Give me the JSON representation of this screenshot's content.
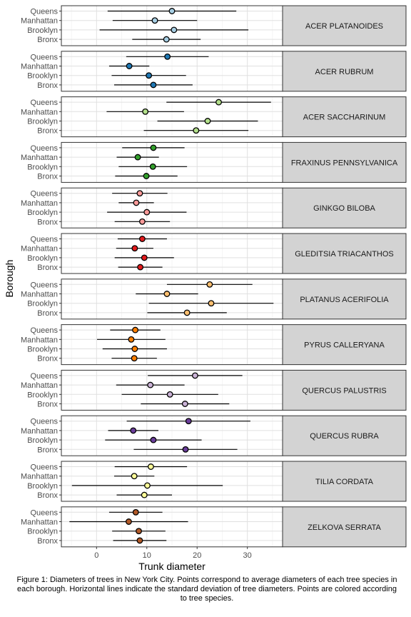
{
  "chart_data": {
    "type": "scatter",
    "subtype": "faceted dot plot with horizontal error bars",
    "title": "",
    "xlabel": "Trunk diameter",
    "ylabel": "Borough",
    "xlim": [
      -7,
      37
    ],
    "xticks": [
      0,
      10,
      20,
      30
    ],
    "grid": true,
    "legend": "none",
    "boroughs": [
      "Queens",
      "Manhattan",
      "Brooklyn",
      "Bronx"
    ],
    "facets": [
      {
        "species": "ACER PLATANOIDES",
        "color": "#a6cee3",
        "mean": [
          15.0,
          11.6,
          15.4,
          13.9
        ],
        "sd": [
          12.8,
          8.4,
          14.8,
          6.8
        ]
      },
      {
        "species": "ACER RUBRUM",
        "color": "#1f78b4",
        "mean": [
          14.1,
          6.5,
          10.4,
          11.3
        ],
        "sd": [
          8.2,
          4.0,
          7.4,
          7.8
        ]
      },
      {
        "species": "ACER SACCHARINUM",
        "color": "#b2df8a",
        "mean": [
          24.3,
          9.7,
          22.1,
          19.8
        ],
        "sd": [
          10.4,
          7.7,
          10.0,
          10.4
        ]
      },
      {
        "species": "FRAXINUS PENNSYLVANICA",
        "color": "#33a02c",
        "mean": [
          11.3,
          8.2,
          11.2,
          9.9
        ],
        "sd": [
          6.2,
          4.2,
          6.8,
          6.2
        ]
      },
      {
        "species": "GINKGO BILOBA",
        "color": "#fb9a99",
        "mean": [
          8.6,
          7.9,
          10.0,
          9.1
        ],
        "sd": [
          5.5,
          3.5,
          7.9,
          5.5
        ]
      },
      {
        "species": "GLEDITSIA TRIACANTHOS",
        "color": "#e31a1c",
        "mean": [
          9.1,
          7.6,
          9.5,
          8.7
        ],
        "sd": [
          4.9,
          3.7,
          5.9,
          4.4
        ]
      },
      {
        "species": "PLATANUS ACERIFOLIA",
        "color": "#fdbf6f",
        "mean": [
          22.5,
          14.0,
          22.8,
          18.0
        ],
        "sd": [
          8.5,
          6.2,
          12.4,
          7.9
        ]
      },
      {
        "species": "PYRUS CALLERYANA",
        "color": "#ff7f00",
        "mean": [
          7.7,
          6.9,
          7.6,
          7.5
        ],
        "sd": [
          5.0,
          6.8,
          6.4,
          4.5
        ]
      },
      {
        "species": "QUERCUS PALUSTRIS",
        "color": "#cab2d6",
        "mean": [
          19.6,
          10.7,
          14.6,
          17.6
        ],
        "sd": [
          9.4,
          6.8,
          9.6,
          8.8
        ]
      },
      {
        "species": "QUERCUS RUBRA",
        "color": "#6a3d9a",
        "mean": [
          18.3,
          7.3,
          11.3,
          17.7
        ],
        "sd": [
          12.3,
          5.0,
          9.6,
          10.3
        ]
      },
      {
        "species": "TILIA CORDATA",
        "color": "#ffff99",
        "mean": [
          10.8,
          7.5,
          10.1,
          9.5
        ],
        "sd": [
          7.2,
          4.0,
          15.0,
          5.5
        ]
      },
      {
        "species": "ZELKOVA SERRATA",
        "color": "#b15928",
        "mean": [
          7.8,
          6.4,
          8.4,
          8.6
        ],
        "sd": [
          5.3,
          11.8,
          5.3,
          5.3
        ]
      }
    ]
  },
  "caption": "Figure 1: Diameters of trees in New York City. Points correspond to average diameters of each tree species in each borough. Horizontal lines indicate the standard deviation of tree diameters. Points are colored according to tree species."
}
